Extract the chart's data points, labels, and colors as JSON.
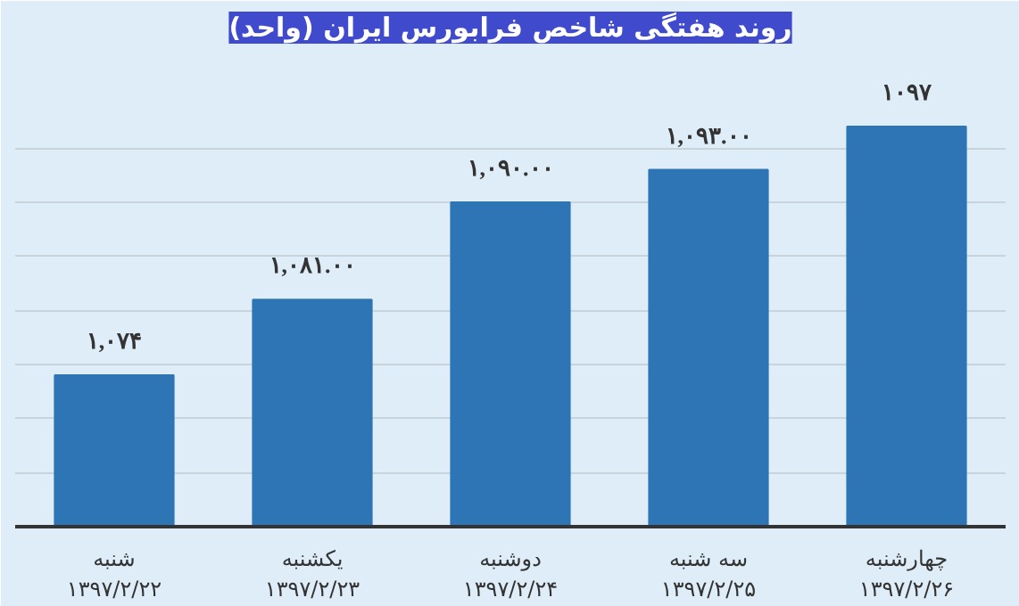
{
  "chart_data": {
    "type": "bar",
    "title": "روند هفتگی شاخص فرابورس ایران (واحد)",
    "categories": [
      "شنبه\n۱۳۹۷/۲/۲۲",
      "یکشنبه\n۱۳۹۷/۲/۲۳",
      "دوشنبه\n۱۳۹۷/۲/۲۴",
      "سه شنبه\n۱۳۹۷/۲/۲۵",
      "چهارشنبه\n۱۳۹۷/۲/۲۶"
    ],
    "values": [
      1074,
      1081,
      1090,
      1093,
      1097
    ],
    "value_labels": [
      "۱,۰۷۴",
      "۱,۰۸۱.۰۰",
      "۱,۰۹۰.۰۰",
      "۱,۰۹۳.۰۰",
      "۱۰۹۷"
    ],
    "color": "#2e75b6",
    "ylim": [
      1060,
      1104
    ],
    "yticks": [
      {
        "value": 1065,
        "label": null
      },
      {
        "value": 1070,
        "label": null
      },
      {
        "value": 1075,
        "label": null
      },
      {
        "value": 1080,
        "label": null
      },
      {
        "value": 1085,
        "label": null
      },
      {
        "value": 1090,
        "label": null
      },
      {
        "value": 1095,
        "label": null
      }
    ],
    "grid": "y",
    "tick_labels": "x"
  }
}
